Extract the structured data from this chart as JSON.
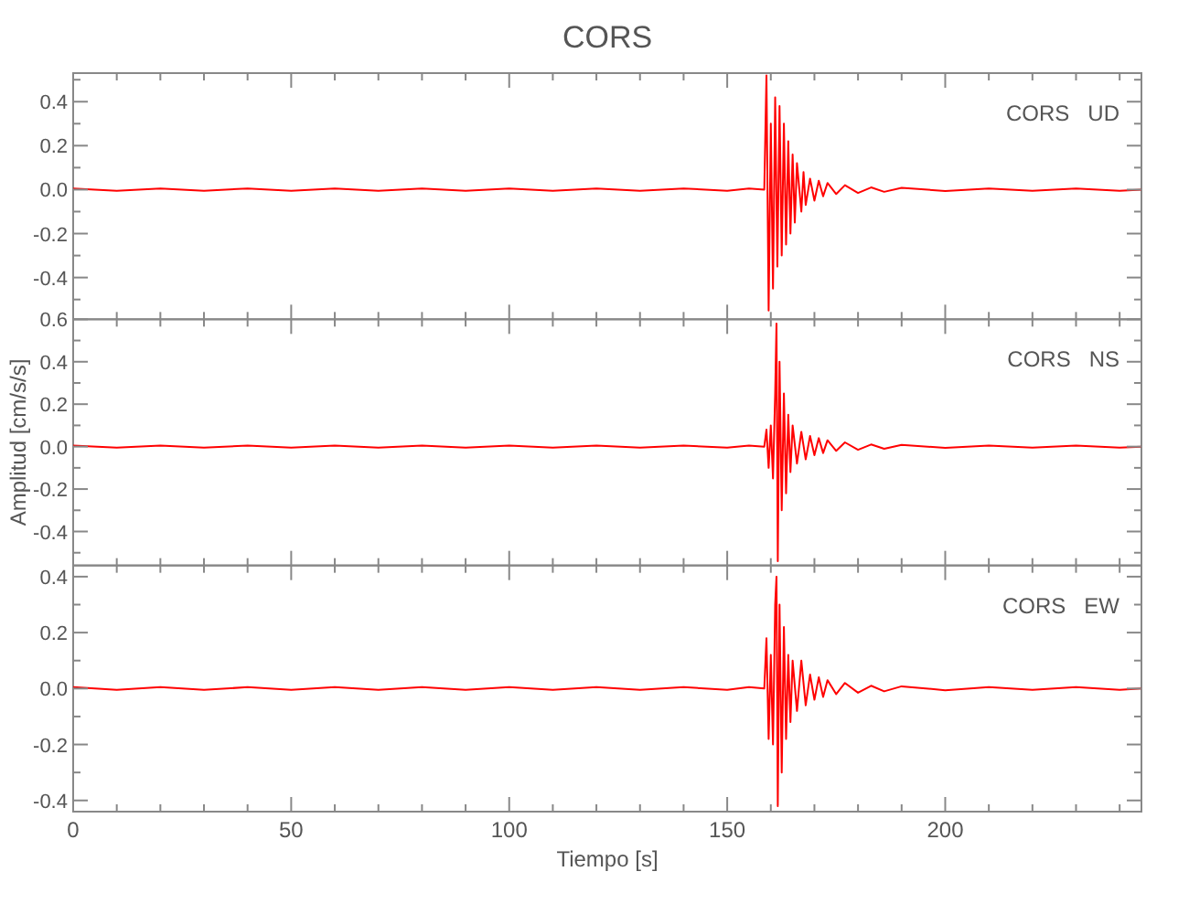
{
  "chart_data": [
    {
      "type": "line",
      "title": "CORS",
      "annotations": [
        "CORS   UD"
      ],
      "xlim": [
        0,
        245
      ],
      "xticks": [
        0,
        {
          "value": 10,
          "label": null
        },
        {
          "value": 20,
          "label": null
        },
        {
          "value": 30,
          "label": null
        },
        {
          "value": 40,
          "label": null
        },
        50,
        {
          "value": 60,
          "label": null
        },
        {
          "value": 70,
          "label": null
        },
        {
          "value": 80,
          "label": null
        },
        {
          "value": 90,
          "label": null
        },
        100,
        {
          "value": 110,
          "label": null
        },
        {
          "value": 120,
          "label": null
        },
        {
          "value": 130,
          "label": null
        },
        {
          "value": 140,
          "label": null
        },
        150,
        {
          "value": 160,
          "label": null
        },
        {
          "value": 170,
          "label": null
        },
        {
          "value": 180,
          "label": null
        },
        {
          "value": 190,
          "label": null
        },
        200,
        {
          "value": 210,
          "label": null
        },
        {
          "value": 220,
          "label": null
        },
        {
          "value": 230,
          "label": null
        },
        {
          "value": 240,
          "label": null
        }
      ],
      "ylim": [
        -0.59,
        0.53
      ],
      "yticks": [
        {
          "value": -0.5,
          "label": null
        },
        {
          "value": -0.4,
          "label": "-0.4"
        },
        {
          "value": -0.3,
          "label": null
        },
        {
          "value": -0.2,
          "label": "-0.2"
        },
        {
          "value": -0.1,
          "label": null
        },
        {
          "value": 0,
          "label": "0.0"
        },
        {
          "value": 0.1,
          "label": null
        },
        {
          "value": 0.2,
          "label": "0.2"
        },
        {
          "value": 0.3,
          "label": null
        },
        {
          "value": 0.4,
          "label": "0.4"
        },
        {
          "value": 0.5,
          "label": null
        }
      ],
      "tick_labels": "y",
      "series": [
        {
          "color": "#ff0000",
          "x": [
            0,
            10,
            20,
            30,
            40,
            50,
            60,
            70,
            80,
            90,
            100,
            110,
            120,
            130,
            140,
            150,
            155,
            158.5,
            159,
            159.5,
            160,
            160.5,
            161,
            161.5,
            162,
            162.5,
            163,
            163.5,
            164,
            164.5,
            165,
            165.5,
            166,
            167,
            167.5,
            168,
            169,
            170,
            171,
            172,
            173,
            175,
            177,
            180,
            183,
            186,
            190,
            200,
            210,
            220,
            230,
            240,
            245
          ],
          "values": [
            0.005,
            -0.005,
            0.005,
            -0.005,
            0.005,
            -0.005,
            0.005,
            -0.005,
            0.005,
            -0.005,
            0.005,
            -0.005,
            0.005,
            -0.005,
            0.005,
            -0.005,
            0.005,
            0,
            0.52,
            -0.55,
            0.3,
            -0.45,
            0.42,
            -0.35,
            0.38,
            -0.3,
            0.3,
            -0.25,
            0.22,
            -0.2,
            0.16,
            -0.15,
            0.12,
            -0.1,
            0.08,
            -0.07,
            0.05,
            -0.05,
            0.04,
            -0.03,
            0.03,
            -0.02,
            0.02,
            -0.015,
            0.01,
            -0.01,
            0.008,
            -0.006,
            0.005,
            -0.005,
            0.005,
            -0.005,
            0
          ]
        }
      ]
    },
    {
      "type": "line",
      "ylabel": "Amplitud [cm/s/s]",
      "annotations": [
        "CORS   NS"
      ],
      "xlim": [
        0,
        245
      ],
      "xticks": [
        0,
        {
          "value": 10,
          "label": null
        },
        {
          "value": 20,
          "label": null
        },
        {
          "value": 30,
          "label": null
        },
        {
          "value": 40,
          "label": null
        },
        50,
        {
          "value": 60,
          "label": null
        },
        {
          "value": 70,
          "label": null
        },
        {
          "value": 80,
          "label": null
        },
        {
          "value": 90,
          "label": null
        },
        100,
        {
          "value": 110,
          "label": null
        },
        {
          "value": 120,
          "label": null
        },
        {
          "value": 130,
          "label": null
        },
        {
          "value": 140,
          "label": null
        },
        150,
        {
          "value": 160,
          "label": null
        },
        {
          "value": 170,
          "label": null
        },
        {
          "value": 180,
          "label": null
        },
        {
          "value": 190,
          "label": null
        },
        200,
        {
          "value": 210,
          "label": null
        },
        {
          "value": 220,
          "label": null
        },
        {
          "value": 230,
          "label": null
        },
        {
          "value": 240,
          "label": null
        }
      ],
      "ylim": [
        -0.56,
        0.6
      ],
      "yticks": [
        {
          "value": -0.5,
          "label": null
        },
        {
          "value": -0.4,
          "label": "-0.4"
        },
        {
          "value": -0.3,
          "label": null
        },
        {
          "value": -0.2,
          "label": "-0.2"
        },
        {
          "value": -0.1,
          "label": null
        },
        {
          "value": 0,
          "label": "0.0"
        },
        {
          "value": 0.1,
          "label": null
        },
        {
          "value": 0.2,
          "label": "0.2"
        },
        {
          "value": 0.3,
          "label": null
        },
        {
          "value": 0.4,
          "label": "0.4"
        },
        {
          "value": 0.5,
          "label": null
        },
        {
          "value": 0.6,
          "label": "0.6"
        }
      ],
      "tick_labels": "y",
      "series": [
        {
          "color": "#ff0000",
          "x": [
            0,
            10,
            20,
            30,
            40,
            50,
            60,
            70,
            80,
            90,
            100,
            110,
            120,
            130,
            140,
            150,
            155,
            158.5,
            159,
            159.5,
            160,
            160.5,
            161,
            161.3,
            161.6,
            162,
            162.5,
            163,
            163.5,
            164,
            164.5,
            165,
            166,
            167,
            168,
            169,
            170,
            171,
            172,
            173,
            175,
            177,
            180,
            183,
            186,
            190,
            200,
            210,
            220,
            230,
            240,
            245
          ],
          "values": [
            0.005,
            -0.005,
            0.005,
            -0.005,
            0.005,
            -0.005,
            0.005,
            -0.005,
            0.005,
            -0.005,
            0.005,
            -0.005,
            0.005,
            -0.005,
            0.005,
            -0.005,
            0.005,
            0,
            0.08,
            -0.1,
            0.1,
            -0.15,
            0.25,
            0.58,
            -0.54,
            0.4,
            -0.3,
            0.25,
            -0.22,
            0.15,
            -0.12,
            0.1,
            -0.08,
            0.07,
            -0.06,
            0.05,
            -0.04,
            0.04,
            -0.03,
            0.03,
            -0.02,
            0.02,
            -0.015,
            0.01,
            -0.01,
            0.008,
            -0.006,
            0.005,
            -0.005,
            0.005,
            -0.005,
            0
          ]
        }
      ]
    },
    {
      "type": "line",
      "xlabel": "Tiempo [s]",
      "annotations": [
        "CORS   EW"
      ],
      "xlim": [
        0,
        245
      ],
      "xticks": [
        0,
        {
          "value": 10,
          "label": null
        },
        {
          "value": 20,
          "label": null
        },
        {
          "value": 30,
          "label": null
        },
        {
          "value": 40,
          "label": null
        },
        50,
        {
          "value": 60,
          "label": null
        },
        {
          "value": 70,
          "label": null
        },
        {
          "value": 80,
          "label": null
        },
        {
          "value": 90,
          "label": null
        },
        100,
        {
          "value": 110,
          "label": null
        },
        {
          "value": 120,
          "label": null
        },
        {
          "value": 130,
          "label": null
        },
        {
          "value": 140,
          "label": null
        },
        150,
        {
          "value": 160,
          "label": null
        },
        {
          "value": 170,
          "label": null
        },
        {
          "value": 180,
          "label": null
        },
        {
          "value": 190,
          "label": null
        },
        200,
        {
          "value": 210,
          "label": null
        },
        {
          "value": 220,
          "label": null
        },
        {
          "value": 230,
          "label": null
        },
        {
          "value": 240,
          "label": null
        }
      ],
      "ylim": [
        -0.44,
        0.44
      ],
      "yticks": [
        {
          "value": -0.4,
          "label": "-0.4"
        },
        {
          "value": -0.3,
          "label": null
        },
        {
          "value": -0.2,
          "label": "-0.2"
        },
        {
          "value": -0.1,
          "label": null
        },
        {
          "value": 0,
          "label": "0.0"
        },
        {
          "value": 0.1,
          "label": null
        },
        {
          "value": 0.2,
          "label": "0.2"
        },
        {
          "value": 0.3,
          "label": null
        },
        {
          "value": 0.4,
          "label": "0.4"
        }
      ],
      "series": [
        {
          "color": "#ff0000",
          "x": [
            0,
            10,
            20,
            30,
            40,
            50,
            60,
            70,
            80,
            90,
            100,
            110,
            120,
            130,
            140,
            150,
            155,
            158.5,
            159,
            159.5,
            160,
            160.5,
            161,
            161.3,
            161.6,
            162,
            162.5,
            163,
            163.5,
            164,
            164.5,
            165,
            166,
            167,
            168,
            169,
            170,
            171,
            172,
            173,
            175,
            177,
            180,
            183,
            186,
            190,
            200,
            210,
            220,
            230,
            240,
            245
          ],
          "values": [
            0.005,
            -0.005,
            0.005,
            -0.005,
            0.005,
            -0.005,
            0.005,
            -0.005,
            0.005,
            -0.005,
            0.005,
            -0.005,
            0.005,
            -0.005,
            0.005,
            -0.005,
            0.005,
            0,
            0.18,
            -0.18,
            0.12,
            -0.2,
            0.3,
            0.4,
            -0.42,
            0.3,
            -0.3,
            0.22,
            -0.18,
            0.12,
            -0.12,
            0.1,
            -0.08,
            0.1,
            -0.06,
            0.05,
            -0.04,
            0.04,
            -0.03,
            0.03,
            -0.02,
            0.02,
            -0.015,
            0.01,
            -0.01,
            0.008,
            -0.006,
            0.005,
            -0.005,
            0.005,
            -0.005,
            0
          ]
        }
      ]
    }
  ]
}
